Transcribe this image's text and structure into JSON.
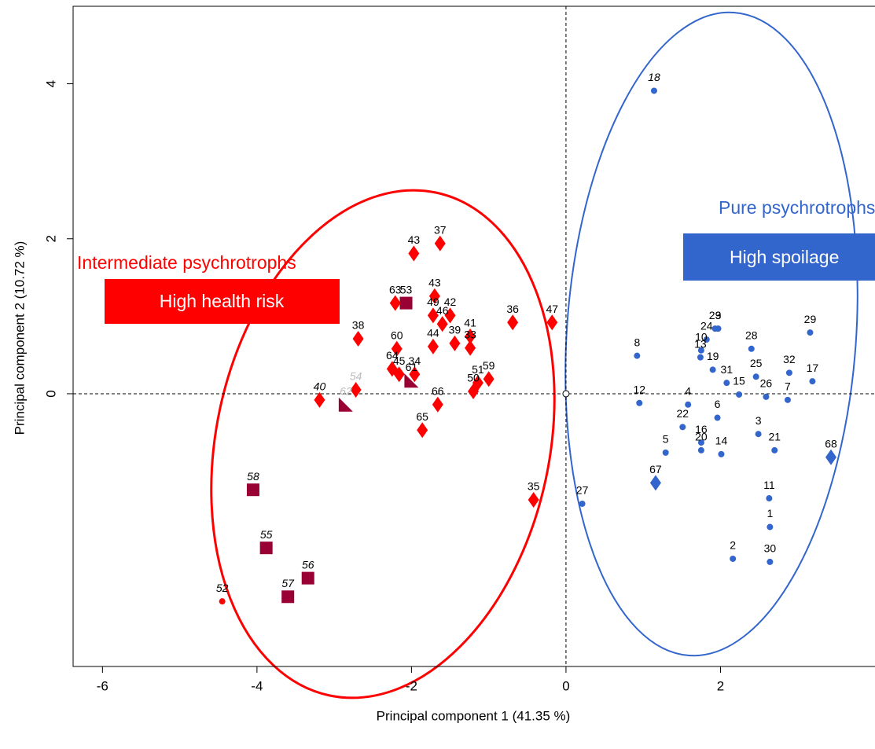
{
  "chart_data": {
    "type": "scatter",
    "xlabel": "Principal component 1 (41.35 %)",
    "ylabel": "Principal component  2 (10.72 %)",
    "xlim": [
      -6.38,
      4.0
    ],
    "ylim": [
      -3.52,
      5.0
    ],
    "xticks": [
      -6,
      -4,
      -2,
      0,
      2
    ],
    "yticks": [
      0,
      2,
      4
    ],
    "annotations": [
      "Intermediate psychrotrophs",
      "High health risk",
      "Pure psychrotrophs",
      "High spoilage"
    ],
    "series": [
      {
        "marker": "circle",
        "color": "#3366cc",
        "labels": [
          "18",
          "8",
          "12",
          "23",
          "9",
          "24",
          "10",
          "13",
          "19",
          "28",
          "29",
          "32",
          "17",
          "25",
          "31",
          "15",
          "26",
          "7",
          "4",
          "6",
          "22",
          "3",
          "16",
          "20",
          "14",
          "21",
          "5",
          "11",
          "1",
          "2",
          "30",
          "27"
        ],
        "x": [
          1.14,
          0.92,
          0.95,
          1.93,
          1.97,
          1.82,
          1.75,
          1.74,
          1.9,
          2.4,
          3.16,
          2.89,
          3.19,
          2.46,
          2.08,
          2.24,
          2.59,
          2.87,
          1.58,
          1.96,
          1.51,
          2.49,
          1.75,
          1.75,
          2.01,
          2.7,
          1.29,
          2.63,
          2.64,
          2.16,
          2.64,
          0.21
        ],
        "y": [
          3.91,
          0.49,
          -0.12,
          0.84,
          0.84,
          0.7,
          0.56,
          0.47,
          0.31,
          0.58,
          0.79,
          0.27,
          0.16,
          0.22,
          0.14,
          -0.01,
          -0.04,
          -0.08,
          -0.14,
          -0.31,
          -0.43,
          -0.52,
          -0.63,
          -0.73,
          -0.78,
          -0.73,
          -0.76,
          -1.35,
          -1.72,
          -2.13,
          -2.17,
          -1.42
        ],
        "italic": [
          true,
          false,
          false,
          false,
          false,
          false,
          false,
          false,
          false,
          false,
          false,
          false,
          false,
          false,
          false,
          false,
          false,
          false,
          false,
          false,
          false,
          false,
          false,
          false,
          false,
          false,
          false,
          false,
          false,
          false,
          false,
          false
        ]
      },
      {
        "marker": "diamond",
        "color": "#3366cc",
        "labels": [
          "67",
          "68"
        ],
        "x": [
          1.16,
          3.43
        ],
        "y": [
          -1.15,
          -0.82
        ],
        "italic": [
          false,
          false
        ]
      },
      {
        "marker": "diamond",
        "color": "#ff0000",
        "labels": [
          "37",
          "43",
          "43",
          "42",
          "36",
          "47",
          "63",
          "49",
          "46",
          "38",
          "60",
          "44",
          "39",
          "41",
          "33",
          "64",
          "45",
          "34",
          "59",
          "51",
          "50",
          "66",
          "65",
          "40",
          "54",
          "35"
        ],
        "x": [
          -1.63,
          -1.97,
          -1.7,
          -1.5,
          -0.69,
          -0.18,
          -2.21,
          -1.72,
          -1.6,
          -2.69,
          -2.19,
          -1.72,
          -1.44,
          -1.24,
          -1.24,
          -2.25,
          -2.16,
          -1.96,
          -1.0,
          -1.14,
          -1.2,
          -1.66,
          -1.86,
          -3.19,
          -2.72,
          -0.42
        ],
        "y": [
          1.94,
          1.81,
          1.26,
          1.01,
          0.92,
          0.92,
          1.17,
          1.01,
          0.9,
          0.71,
          0.58,
          0.61,
          0.65,
          0.74,
          0.59,
          0.32,
          0.25,
          0.25,
          0.19,
          0.14,
          0.03,
          -0.14,
          -0.47,
          -0.08,
          0.05,
          -1.37
        ],
        "italic": [
          false,
          false,
          false,
          false,
          false,
          false,
          false,
          false,
          false,
          false,
          false,
          false,
          false,
          false,
          false,
          false,
          false,
          false,
          false,
          false,
          false,
          false,
          false,
          true,
          true,
          false
        ],
        "grey": [
          false,
          false,
          false,
          false,
          false,
          false,
          false,
          false,
          false,
          false,
          false,
          false,
          false,
          false,
          false,
          false,
          false,
          false,
          false,
          false,
          false,
          false,
          false,
          false,
          true,
          false
        ]
      },
      {
        "marker": "circle",
        "color": "#ff0000",
        "labels": [
          "52"
        ],
        "x": [
          -4.45
        ],
        "y": [
          -2.68
        ],
        "italic": [
          true
        ]
      },
      {
        "marker": "square",
        "color": "#990033",
        "labels": [
          "53",
          "58",
          "55",
          "56",
          "57"
        ],
        "x": [
          -2.07,
          -4.05,
          -3.88,
          -3.34,
          -3.6
        ],
        "y": [
          1.17,
          -1.24,
          -1.99,
          -2.38,
          -2.62
        ],
        "italic": [
          false,
          true,
          true,
          true,
          true
        ]
      },
      {
        "marker": "triangle",
        "color": "#990033",
        "labels": [
          "61",
          "62"
        ],
        "x": [
          -2.0,
          -2.85
        ],
        "y": [
          0.17,
          -0.14
        ],
        "italic": [
          false,
          true
        ],
        "grey": [
          false,
          true
        ]
      }
    ]
  }
}
